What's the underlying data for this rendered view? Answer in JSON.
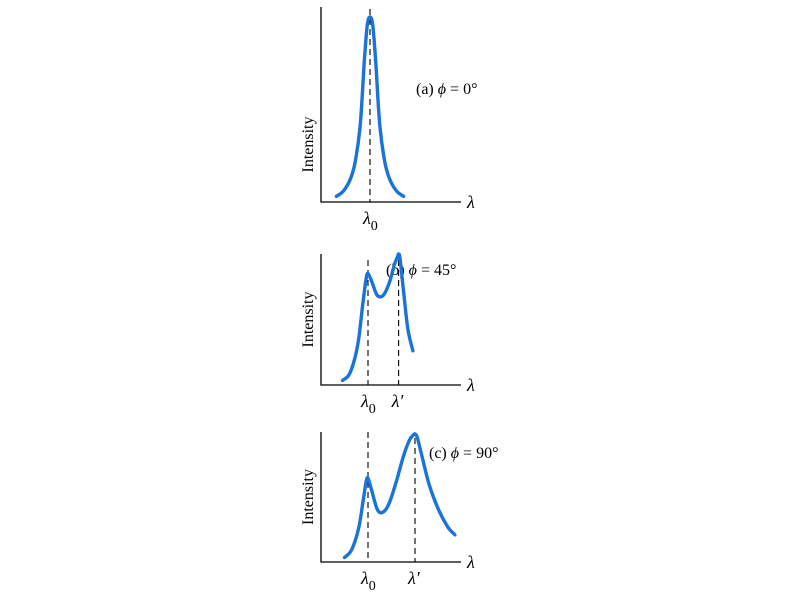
{
  "chart_data": [
    {
      "type": "line",
      "panel": "(a)",
      "angle_label": "ϕ",
      "angle_value": "= 0°",
      "ylabel": "Intensity",
      "xlabel": "λ",
      "color": "#1a73d9",
      "xlim": [
        -1.0,
        2.0
      ],
      "ylim": [
        0,
        1.0
      ],
      "ticks": [
        {
          "x": 0,
          "symbol": "λ",
          "sub": "0",
          "prime": ""
        }
      ],
      "series": [
        {
          "name": "",
          "x": [
            -0.7,
            -0.55,
            -0.4,
            -0.3,
            -0.2,
            -0.12,
            -0.06,
            0,
            0.06,
            0.12,
            0.2,
            0.3,
            0.4,
            0.55,
            0.7
          ],
          "values": [
            0.02,
            0.05,
            0.12,
            0.22,
            0.42,
            0.75,
            0.95,
            1.0,
            0.95,
            0.75,
            0.42,
            0.22,
            0.12,
            0.05,
            0.02
          ]
        }
      ]
    },
    {
      "type": "line",
      "panel": "(b)",
      "angle_label": "ϕ",
      "angle_value": "= 45°",
      "ylabel": "Intensity",
      "xlabel": "λ",
      "color": "#1a73d9",
      "xlim": [
        -1.0,
        2.0
      ],
      "ylim": [
        0,
        1.0
      ],
      "ticks": [
        {
          "x": 0,
          "symbol": "λ",
          "sub": "0",
          "prime": ""
        },
        {
          "x": 0.6,
          "symbol": "λ",
          "sub": "",
          "prime": "′"
        }
      ],
      "series": [
        {
          "name": "",
          "x": [
            -0.5,
            -0.35,
            -0.2,
            -0.1,
            -0.04,
            0,
            0.08,
            0.18,
            0.3,
            0.42,
            0.52,
            0.58,
            0.6,
            0.63,
            0.7,
            0.78,
            0.88
          ],
          "values": [
            0.02,
            0.08,
            0.3,
            0.62,
            0.8,
            0.85,
            0.78,
            0.68,
            0.68,
            0.78,
            0.92,
            0.98,
            1.0,
            0.96,
            0.7,
            0.42,
            0.25
          ]
        }
      ]
    },
    {
      "type": "line",
      "panel": "(c)",
      "angle_label": "ϕ",
      "angle_value": "= 90°",
      "ylabel": "Intensity",
      "xlabel": "λ",
      "color": "#1a73d9",
      "xlim": [
        -1.0,
        2.0
      ],
      "ylim": [
        0,
        1.0
      ],
      "ticks": [
        {
          "x": 0,
          "symbol": "λ",
          "sub": "0",
          "prime": ""
        },
        {
          "x": 1.0,
          "symbol": "λ",
          "sub": "",
          "prime": "′"
        }
      ],
      "series": [
        {
          "name": "",
          "x": [
            -0.5,
            -0.35,
            -0.2,
            -0.1,
            -0.04,
            0,
            0.08,
            0.2,
            0.32,
            0.45,
            0.6,
            0.75,
            0.88,
            0.96,
            1.0,
            1.05,
            1.15,
            1.3,
            1.5,
            1.7,
            1.85
          ],
          "values": [
            0.02,
            0.08,
            0.25,
            0.48,
            0.62,
            0.65,
            0.55,
            0.4,
            0.38,
            0.45,
            0.62,
            0.82,
            0.95,
            0.99,
            1.0,
            0.97,
            0.82,
            0.6,
            0.4,
            0.26,
            0.2
          ]
        }
      ]
    }
  ]
}
